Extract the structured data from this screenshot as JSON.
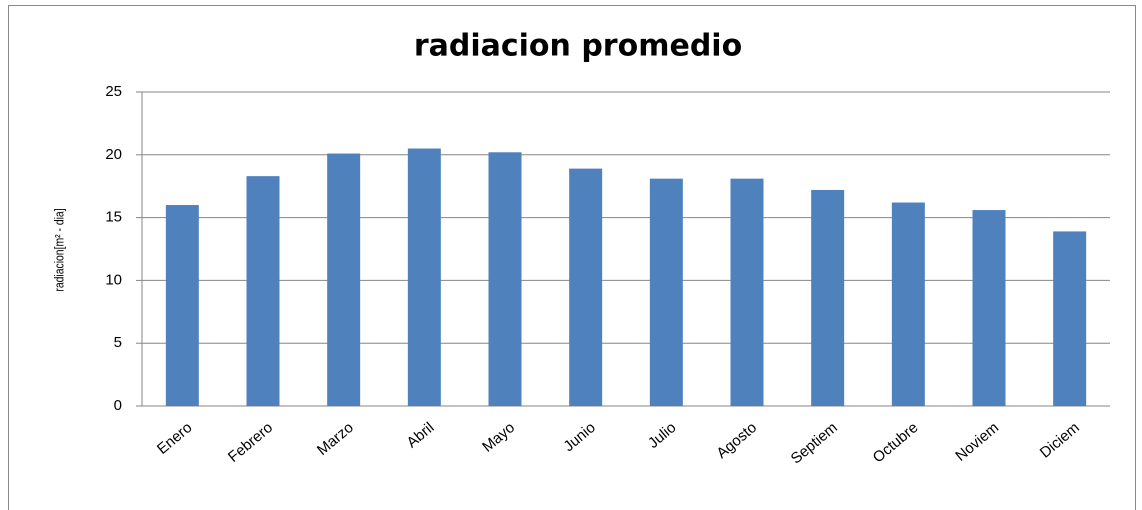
{
  "chart_data": {
    "type": "bar",
    "title": "radiacion promedio",
    "y_label": "radiacion[m² - dia]",
    "categories": [
      "Enero",
      "Febrero",
      "Marzo",
      "Abril",
      "Mayo",
      "Junio",
      "Julio",
      "Agosto",
      "Septiem",
      "Octubre",
      "Noviem",
      "Diciem"
    ],
    "values": [
      16.0,
      18.3,
      20.1,
      20.5,
      20.2,
      18.9,
      18.1,
      18.1,
      17.2,
      16.2,
      15.6,
      13.9
    ],
    "color": "#4f81bd",
    "ylim": [
      0,
      25
    ],
    "yticks": [
      0,
      5,
      10,
      15,
      20,
      25
    ],
    "grid": true
  }
}
